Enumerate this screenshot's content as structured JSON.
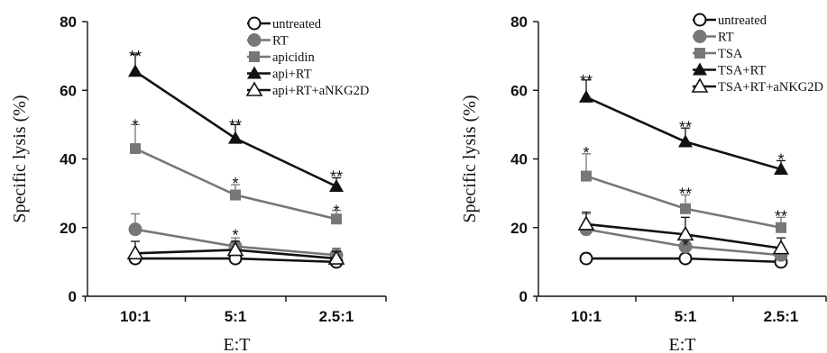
{
  "chart_data": [
    {
      "type": "line",
      "categories": [
        "10:1",
        "5:1",
        "2.5:1"
      ],
      "xlabel": "E:T",
      "ylabel": "Specific lysis (%)",
      "ylim": [
        0,
        80
      ],
      "yticks": [
        "0",
        "20",
        "40",
        "60",
        "80"
      ],
      "legend_position": "top-right",
      "series": [
        {
          "name": "untreated",
          "values": [
            11,
            11,
            10
          ],
          "errors": [
            1.5,
            3,
            3.5
          ],
          "color": "#111111",
          "marker": "circle-open"
        },
        {
          "name": "RT",
          "values": [
            19.5,
            14.5,
            12
          ],
          "errors": [
            4.5,
            2.5,
            2
          ],
          "color": "#777777",
          "marker": "circle-filled"
        },
        {
          "name": "apicidin",
          "values": [
            43,
            29.5,
            22.5
          ],
          "errors": [
            7,
            3,
            2.5
          ],
          "color": "#777777",
          "marker": "square-filled"
        },
        {
          "name": "api+RT",
          "values": [
            65.5,
            46,
            32
          ],
          "errors": [
            5,
            4,
            2.5
          ],
          "color": "#111111",
          "marker": "triangle-filled"
        },
        {
          "name": "api+RT+aNKG2D",
          "values": [
            12.5,
            13.5,
            11
          ],
          "errors": [
            3.5,
            2.5,
            2
          ],
          "color": "#111111",
          "marker": "triangle-open"
        }
      ],
      "annotations": [
        {
          "text": "**",
          "x": "10:1",
          "y": 70
        },
        {
          "text": "**",
          "x": "5:1",
          "y": 50
        },
        {
          "text": "**",
          "x": "2.5:1",
          "y": 35
        },
        {
          "text": "*",
          "x": "10:1",
          "y": 50
        },
        {
          "text": "*",
          "x": "5:1",
          "y": 33
        },
        {
          "text": "*",
          "x": "2.5:1",
          "y": 25
        },
        {
          "text": "*",
          "x": "5:1",
          "y": 18
        }
      ]
    },
    {
      "type": "line",
      "categories": [
        "10:1",
        "5:1",
        "2.5:1"
      ],
      "xlabel": "E:T",
      "ylabel": "Specific lysis (%)",
      "ylim": [
        0,
        80
      ],
      "yticks": [
        "0",
        "20",
        "40",
        "60",
        "80"
      ],
      "legend_position": "top-right",
      "series": [
        {
          "name": "untreated",
          "values": [
            11,
            11,
            10
          ],
          "errors": [
            1.5,
            3,
            3.5
          ],
          "color": "#111111",
          "marker": "circle-open"
        },
        {
          "name": "RT",
          "values": [
            19.5,
            14.5,
            12
          ],
          "errors": [
            4.5,
            2.5,
            2
          ],
          "color": "#777777",
          "marker": "circle-filled"
        },
        {
          "name": "TSA",
          "values": [
            35,
            25.5,
            20
          ],
          "errors": [
            6.5,
            4,
            3
          ],
          "color": "#777777",
          "marker": "square-filled"
        },
        {
          "name": "TSA+RT",
          "values": [
            58,
            45,
            37
          ],
          "errors": [
            5,
            4,
            2.5
          ],
          "color": "#111111",
          "marker": "triangle-filled"
        },
        {
          "name": "TSA+RT+aNKG2D",
          "values": [
            21,
            18,
            14
          ],
          "errors": [
            3.5,
            5,
            3
          ],
          "color": "#111111",
          "marker": "triangle-open"
        }
      ],
      "annotations": [
        {
          "text": "**",
          "x": "10:1",
          "y": 63
        },
        {
          "text": "**",
          "x": "5:1",
          "y": 49.5
        },
        {
          "text": "*",
          "x": "2.5:1",
          "y": 40
        },
        {
          "text": "*",
          "x": "10:1",
          "y": 42
        },
        {
          "text": "**",
          "x": "5:1",
          "y": 30
        },
        {
          "text": "**",
          "x": "2.5:1",
          "y": 23.5
        },
        {
          "text": "*",
          "x": "5:1",
          "y": 15
        }
      ]
    }
  ]
}
